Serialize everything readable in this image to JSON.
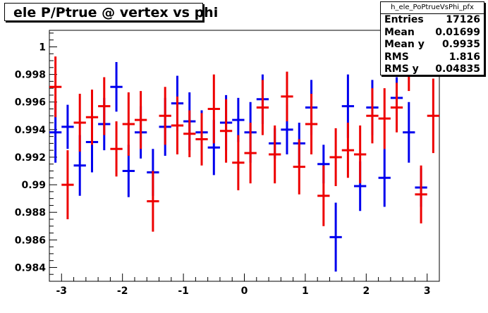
{
  "title": "ele P/Ptrue @ vertex vs phi",
  "stats": {
    "name": "h_ele_PoPtrueVsPhi_pfx",
    "rows": [
      {
        "label": "Entries",
        "value": "17126"
      },
      {
        "label": "Mean",
        "value": "0.01699"
      },
      {
        "label": "Mean y",
        "value": "0.9935"
      },
      {
        "label": "RMS",
        "value": "1.816"
      },
      {
        "label": "RMS y",
        "value": "0.04835"
      }
    ]
  },
  "chart_data": {
    "type": "scatter",
    "title": "ele P/Ptrue @ vertex vs phi",
    "xlabel": "",
    "ylabel": "",
    "xlim": [
      -3.2,
      3.2
    ],
    "ylim": [
      0.983,
      1.0012
    ],
    "x_ticks": [
      "-3",
      "-2",
      "-1",
      "0",
      "1",
      "2",
      "3"
    ],
    "y_ticks": [
      "0.984",
      "0.986",
      "0.988",
      "0.99",
      "0.992",
      "0.994",
      "0.996",
      "0.998",
      "1"
    ],
    "grid": false,
    "colors": {
      "blue": "#0000ee",
      "red": "#ee0000"
    },
    "bin_half_width": 0.1,
    "series": [
      {
        "color": "blue",
        "points": [
          {
            "x": -3.1,
            "y": 0.9938,
            "err": 0.0022
          },
          {
            "x": -2.9,
            "y": 0.9942,
            "err": 0.0016
          },
          {
            "x": -2.7,
            "y": 0.9914,
            "err": 0.0022
          },
          {
            "x": -2.5,
            "y": 0.9931,
            "err": 0.0022
          },
          {
            "x": -2.3,
            "y": 0.9944,
            "err": 0.0019
          },
          {
            "x": -2.1,
            "y": 0.9971,
            "err": 0.0018
          },
          {
            "x": -1.9,
            "y": 0.991,
            "err": 0.0019
          },
          {
            "x": -1.7,
            "y": 0.9938,
            "err": 0.0019
          },
          {
            "x": -1.5,
            "y": 0.9909,
            "err": 0.0017
          },
          {
            "x": -1.3,
            "y": 0.9942,
            "err": 0.0021
          },
          {
            "x": -1.1,
            "y": 0.9959,
            "err": 0.002
          },
          {
            "x": -0.9,
            "y": 0.9946,
            "err": 0.0021
          },
          {
            "x": -0.7,
            "y": 0.9938,
            "err": 0.0016
          },
          {
            "x": -0.5,
            "y": 0.9927,
            "err": 0.002
          },
          {
            "x": -0.3,
            "y": 0.9945,
            "err": 0.002
          },
          {
            "x": -0.1,
            "y": 0.9947,
            "err": 0.0016
          },
          {
            "x": 0.1,
            "y": 0.9938,
            "err": 0.0022
          },
          {
            "x": 0.3,
            "y": 0.9962,
            "err": 0.0018
          },
          {
            "x": 0.5,
            "y": 0.993,
            "err": 0.0011
          },
          {
            "x": 0.7,
            "y": 0.994,
            "err": 0.0018
          },
          {
            "x": 0.9,
            "y": 0.993,
            "err": 0.0015
          },
          {
            "x": 1.1,
            "y": 0.9956,
            "err": 0.002
          },
          {
            "x": 1.3,
            "y": 0.9915,
            "err": 0.0014
          },
          {
            "x": 1.5,
            "y": 0.9862,
            "err": 0.0025
          },
          {
            "x": 1.7,
            "y": 0.9957,
            "err": 0.0023
          },
          {
            "x": 1.9,
            "y": 0.9899,
            "err": 0.0018
          },
          {
            "x": 2.1,
            "y": 0.9956,
            "err": 0.002
          },
          {
            "x": 2.3,
            "y": 0.9905,
            "err": 0.0021
          },
          {
            "x": 2.5,
            "y": 0.9963,
            "err": 0.0015
          },
          {
            "x": 2.7,
            "y": 0.9938,
            "err": 0.0022
          },
          {
            "x": 2.9,
            "y": 0.9898,
            "err": 0.0014
          }
        ]
      },
      {
        "color": "red",
        "points": [
          {
            "x": -3.1,
            "y": 0.9971,
            "err": 0.0022
          },
          {
            "x": -2.9,
            "y": 0.99,
            "err": 0.0025
          },
          {
            "x": -2.7,
            "y": 0.9945,
            "err": 0.0021
          },
          {
            "x": -2.5,
            "y": 0.9949,
            "err": 0.002
          },
          {
            "x": -2.3,
            "y": 0.9957,
            "err": 0.0021
          },
          {
            "x": -2.1,
            "y": 0.9926,
            "err": 0.002
          },
          {
            "x": -1.9,
            "y": 0.9944,
            "err": 0.0023
          },
          {
            "x": -1.7,
            "y": 0.9947,
            "err": 0.0021
          },
          {
            "x": -1.5,
            "y": 0.9888,
            "err": 0.0022
          },
          {
            "x": -1.3,
            "y": 0.995,
            "err": 0.0021
          },
          {
            "x": -1.1,
            "y": 0.9943,
            "err": 0.0021
          },
          {
            "x": -0.9,
            "y": 0.9937,
            "err": 0.0017
          },
          {
            "x": -0.7,
            "y": 0.9933,
            "err": 0.0019
          },
          {
            "x": -0.5,
            "y": 0.9955,
            "err": 0.0025
          },
          {
            "x": -0.3,
            "y": 0.9939,
            "err": 0.0023
          },
          {
            "x": -0.1,
            "y": 0.9916,
            "err": 0.002
          },
          {
            "x": 0.1,
            "y": 0.9923,
            "err": 0.0022
          },
          {
            "x": 0.3,
            "y": 0.9956,
            "err": 0.002
          },
          {
            "x": 0.5,
            "y": 0.9922,
            "err": 0.0021
          },
          {
            "x": 0.7,
            "y": 0.9964,
            "err": 0.0018
          },
          {
            "x": 0.9,
            "y": 0.9913,
            "err": 0.002
          },
          {
            "x": 1.1,
            "y": 0.9944,
            "err": 0.0022
          },
          {
            "x": 1.3,
            "y": 0.9892,
            "err": 0.0022
          },
          {
            "x": 1.5,
            "y": 0.992,
            "err": 0.0021
          },
          {
            "x": 1.7,
            "y": 0.9925,
            "err": 0.002
          },
          {
            "x": 1.9,
            "y": 0.9922,
            "err": 0.0021
          },
          {
            "x": 2.1,
            "y": 0.995,
            "err": 0.002
          },
          {
            "x": 2.3,
            "y": 0.9948,
            "err": 0.0022
          },
          {
            "x": 2.5,
            "y": 0.9956,
            "err": 0.0018
          },
          {
            "x": 2.7,
            "y": 0.9984,
            "err": 0.0016
          },
          {
            "x": 2.9,
            "y": 0.9893,
            "err": 0.0021
          },
          {
            "x": 3.1,
            "y": 0.995,
            "err": 0.0027
          }
        ]
      }
    ]
  }
}
